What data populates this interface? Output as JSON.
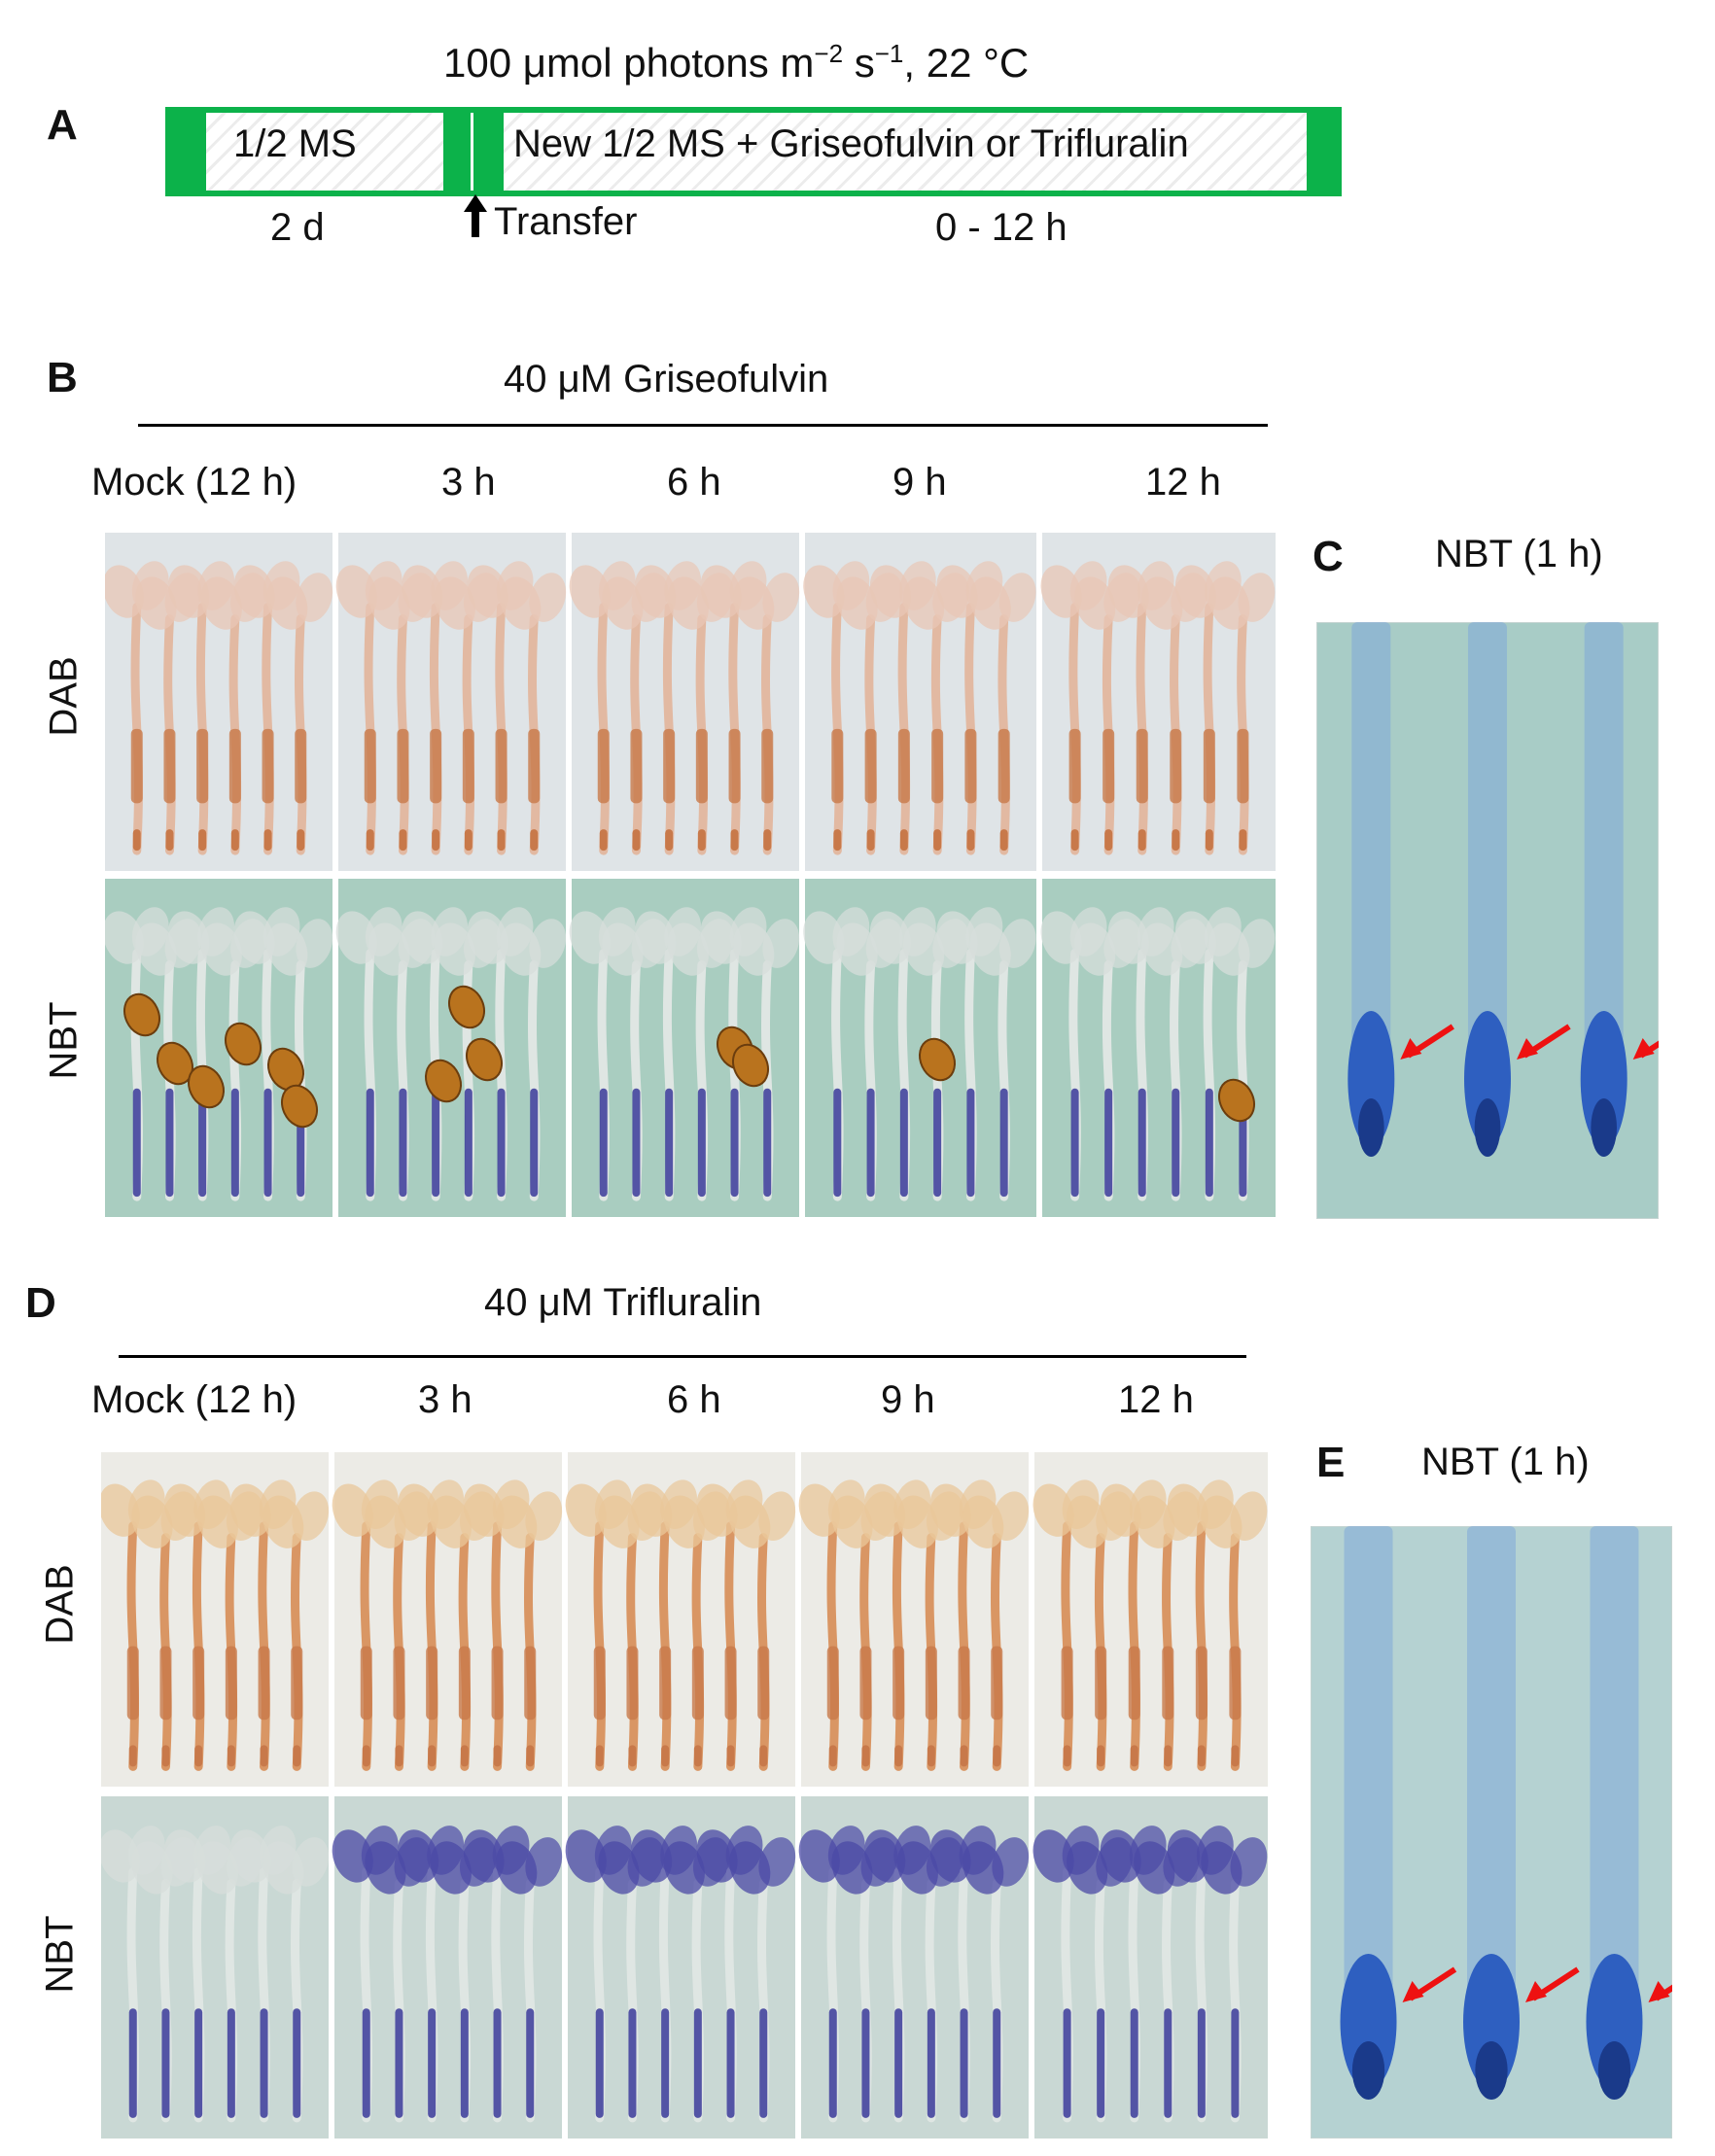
{
  "panel_letters": {
    "a": "A",
    "b": "B",
    "c": "C",
    "d": "D",
    "e": "E"
  },
  "schematic": {
    "condition": "100 μmol photons m",
    "sup1": "−2",
    "mid": " s",
    "sup2": "−1",
    "tail": ", 22 °C",
    "box1_label": "1/2 MS",
    "box2_label": "New 1/2 MS + Griseofulvin or Trifluralin",
    "dur1": "2 d",
    "transfer_label": "Transfer",
    "dur2": "0 - 12 h",
    "bar_color": "#0cb24a"
  },
  "griseofulvin": {
    "title": "40 μM Griseofulvin",
    "columns": [
      "Mock (12 h)",
      "3 h",
      "6 h",
      "9 h",
      "12 h"
    ],
    "rows": [
      "DAB",
      "NBT"
    ]
  },
  "trifluralin": {
    "title": "40 μM Trifluralin",
    "columns": [
      "Mock (12 h)",
      "3 h",
      "6 h",
      "9 h",
      "12 h"
    ],
    "rows": [
      "DAB",
      "NBT"
    ]
  },
  "panel_c": {
    "title": "NBT (1 h)"
  },
  "panel_e": {
    "title": "NBT (1 h)"
  },
  "colors": {
    "dab_bg": "#dde3e6",
    "dab_stain": "#c8794a",
    "nbt_bg": "#a9cdc0",
    "nbt_stain": "#3b3a9a",
    "seed": "#b9731e",
    "arrow": "#ee1111",
    "root_blue": "#2e5fc0"
  }
}
